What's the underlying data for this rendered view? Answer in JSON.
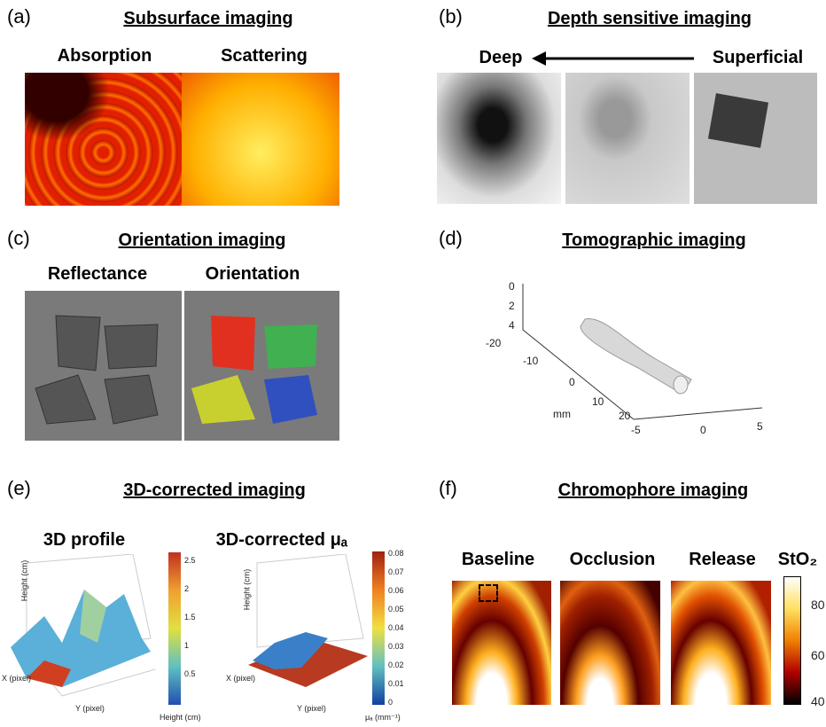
{
  "panels": [
    {
      "label": "(a)",
      "title": "Subsurface imaging",
      "captions": [
        "Absorption",
        "Scattering"
      ]
    },
    {
      "label": "(b)",
      "title": "Depth sensitive imaging",
      "captions": [
        "Deep",
        "Superficial"
      ]
    },
    {
      "label": "(c)",
      "title": "Orientation imaging",
      "captions": [
        "Reflectance",
        "Orientation"
      ]
    },
    {
      "label": "(d)",
      "title": "Tomographic imaging",
      "z_ticks": [
        "0",
        "2",
        "4"
      ],
      "y_ticks": [
        "-20",
        "-10",
        "0",
        "10",
        "20"
      ],
      "y_unit": "mm",
      "x_ticks": [
        "-5",
        "0",
        "5"
      ]
    },
    {
      "label": "(e)",
      "title": "3D-corrected imaging",
      "captions": [
        "3D profile",
        "3D-corrected μₐ"
      ],
      "left_axes": [
        "Height (cm)",
        "X (pixel)",
        "Y (pixel)"
      ],
      "left_colorbar_ticks": [
        "2.5",
        "2",
        "1.5",
        "1",
        "0.5"
      ],
      "left_colorbar_label": "Height (cm)",
      "right_axes": [
        "Height (cm)",
        "X (pixel)",
        "Y (pixel)"
      ],
      "right_colorbar_ticks": [
        "0.08",
        "0.07",
        "0.06",
        "0.05",
        "0.04",
        "0.03",
        "0.02",
        "0.01",
        "0"
      ],
      "right_colorbar_label": "μₐ (mm⁻¹)"
    },
    {
      "label": "(f)",
      "title": "Chromophore imaging",
      "captions": [
        "Baseline",
        "Occlusion",
        "Release"
      ],
      "colorbar_title": "StO₂",
      "colorbar_ticks": [
        "80",
        "60",
        "40"
      ]
    }
  ]
}
